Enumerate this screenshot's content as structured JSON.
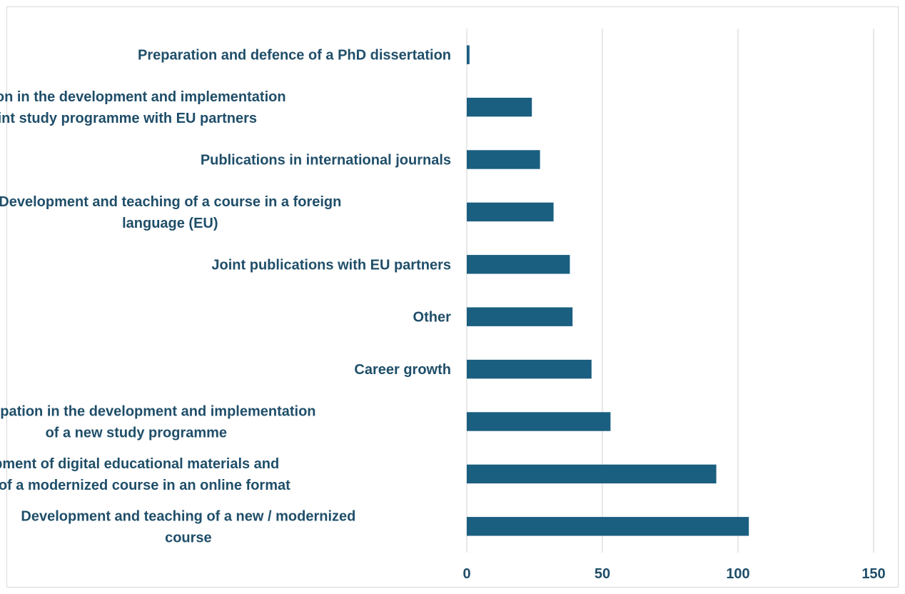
{
  "chart_data": {
    "type": "bar",
    "orientation": "horizontal",
    "title": "",
    "xlabel": "",
    "ylabel": "",
    "categories": [
      "Preparation and defence of a PhD dissertation",
      "Participation in the development and implementation of a joint study programme with EU partners",
      "Publications in international journals",
      "Development and teaching of a course in a foreign language (EU)",
      "Joint publications with EU partners",
      "Other",
      "Career growth",
      "Participation in the development and implementation of a new study programme",
      "Development of digital educational materials and teaching of a modernized course in an online format",
      "Development and teaching of a new / modernized course"
    ],
    "category_label_lines": [
      [
        "Preparation and defence of a PhD dissertation"
      ],
      [
        "Participation in the development and implementation",
        "of a joint study programme with EU partners"
      ],
      [
        "Publications in international journals"
      ],
      [
        "Development and teaching of a course in a foreign",
        "language (EU)"
      ],
      [
        "Joint publications with EU partners"
      ],
      [
        "Other"
      ],
      [
        "Career growth"
      ],
      [
        "Participation in the development and implementation",
        "of a new study programme"
      ],
      [
        "Development of digital educational materials and",
        "teaching of a modernized course in an online format"
      ],
      [
        "Development and teaching of a new / modernized",
        "course"
      ]
    ],
    "values": [
      1,
      24,
      27,
      32,
      38,
      39,
      46,
      53,
      92,
      104
    ],
    "xlim": [
      0,
      150
    ],
    "xticks": [
      "0",
      "50",
      "100",
      "150"
    ],
    "grid": "vertical",
    "legend": "none",
    "colors": {
      "bar": "#1a5e80",
      "text": "#1f4e69",
      "grid": "#d9d9d9"
    }
  }
}
